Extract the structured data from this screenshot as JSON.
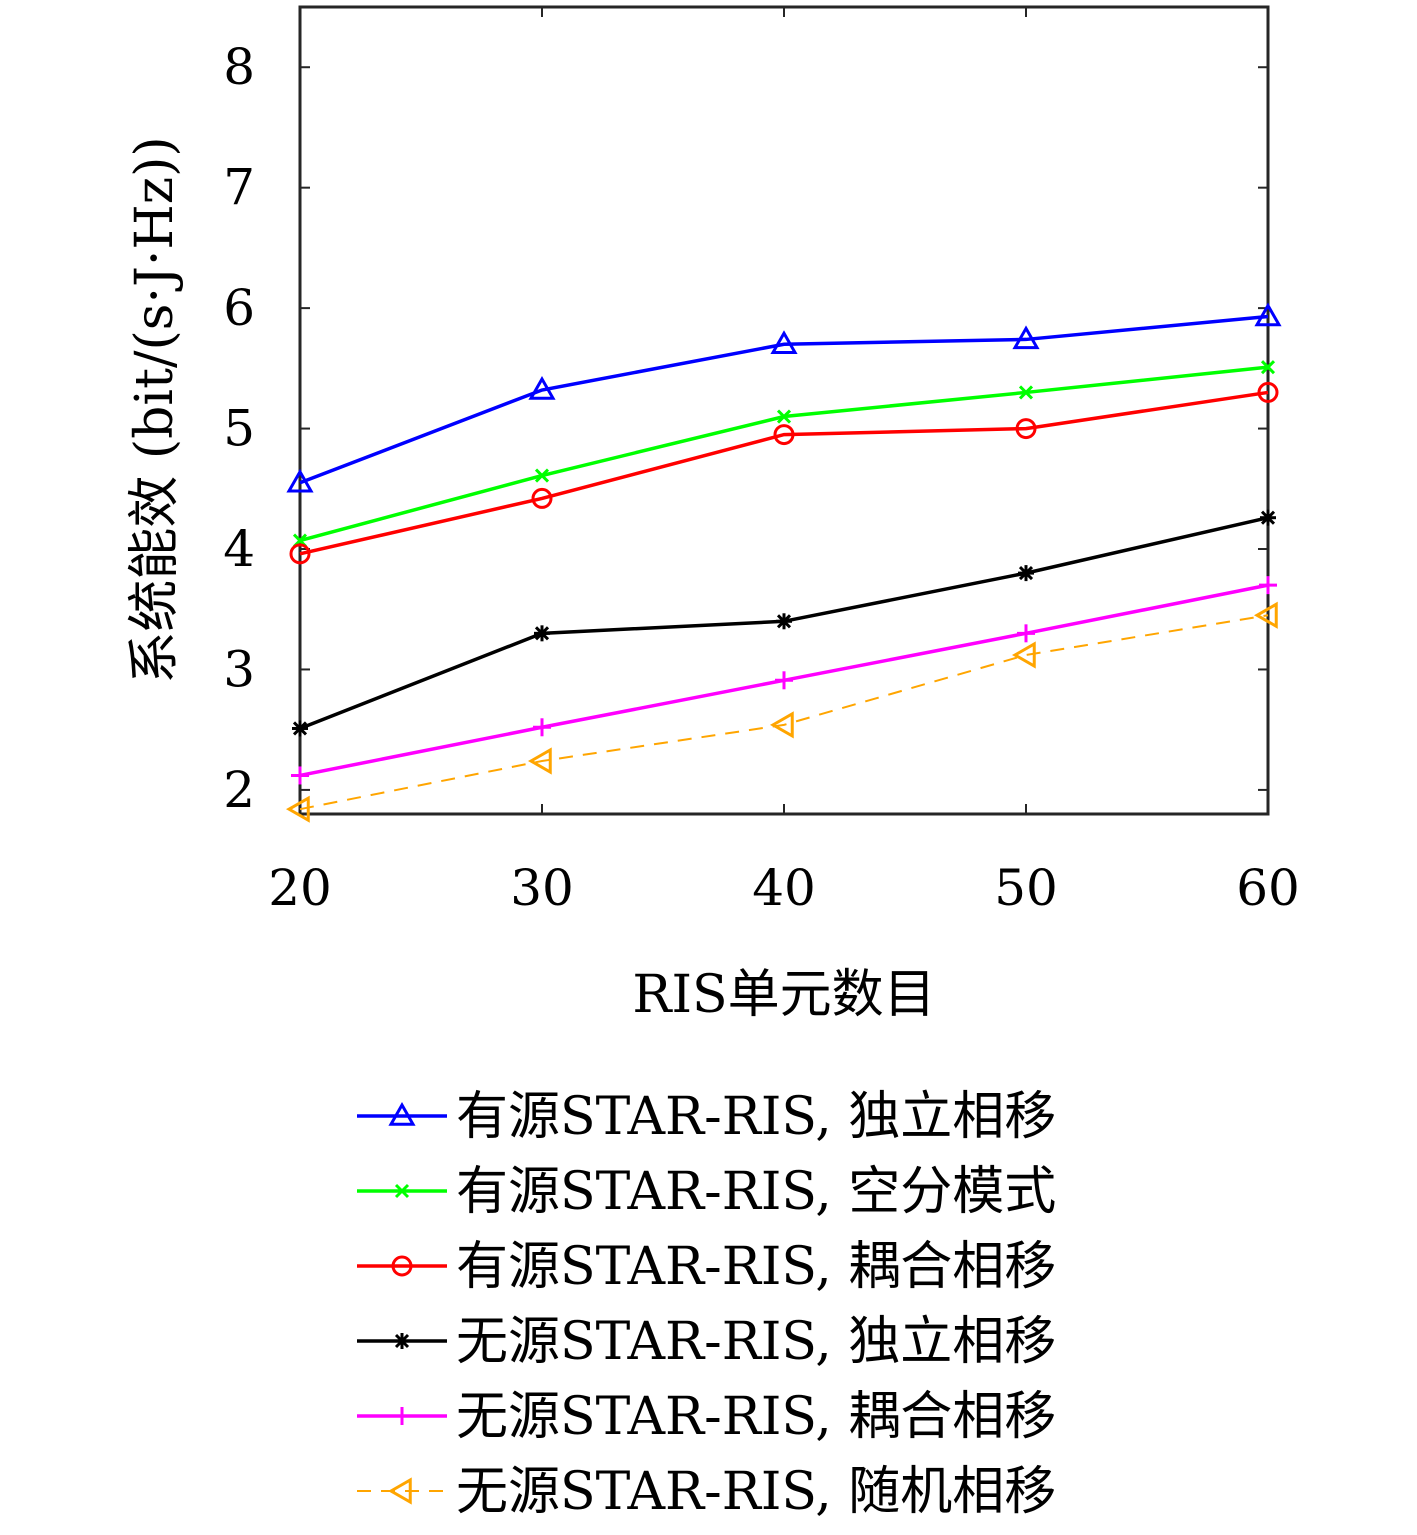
{
  "chart_data": {
    "type": "line",
    "title": "",
    "xlabel": "RIS单元数目",
    "ylabel": "系统能效 (bit/(s·J·Hz))",
    "x": [
      20,
      30,
      40,
      50,
      60
    ],
    "xlim": [
      20,
      60
    ],
    "ylim": [
      1.8,
      8.5
    ],
    "xticks": [
      "20",
      "30",
      "40",
      "50",
      "60"
    ],
    "yticks": [
      "2",
      "3",
      "4",
      "5",
      "6",
      "7",
      "8"
    ],
    "grid": false,
    "legend_position": "below",
    "series": [
      {
        "name": "有源STAR-RIS, 独立相移",
        "values": [
          4.55,
          5.32,
          5.7,
          5.74,
          5.93
        ],
        "color": "#0000ff",
        "marker": "triangle-up",
        "dashed": false
      },
      {
        "name": "有源STAR-RIS, 空分模式",
        "values": [
          4.07,
          4.61,
          5.1,
          5.3,
          5.51
        ],
        "color": "#00ff00",
        "marker": "x",
        "dashed": false
      },
      {
        "name": "有源STAR-RIS, 耦合相移",
        "values": [
          3.96,
          4.42,
          4.95,
          5.0,
          5.3
        ],
        "color": "#ff0000",
        "marker": "circle",
        "dashed": false
      },
      {
        "name": "无源STAR-RIS, 独立相移",
        "values": [
          2.51,
          3.3,
          3.4,
          3.8,
          4.26
        ],
        "color": "#000000",
        "marker": "asterisk",
        "dashed": false
      },
      {
        "name": "无源STAR-RIS, 耦合相移",
        "values": [
          2.12,
          2.52,
          2.91,
          3.3,
          3.7
        ],
        "color": "#ff00ff",
        "marker": "plus",
        "dashed": false
      },
      {
        "name": "无源STAR-RIS, 随机相移",
        "values": [
          1.84,
          2.24,
          2.54,
          3.12,
          3.45
        ],
        "color": "#ffa500",
        "marker": "triangle-left",
        "dashed": true
      }
    ]
  }
}
